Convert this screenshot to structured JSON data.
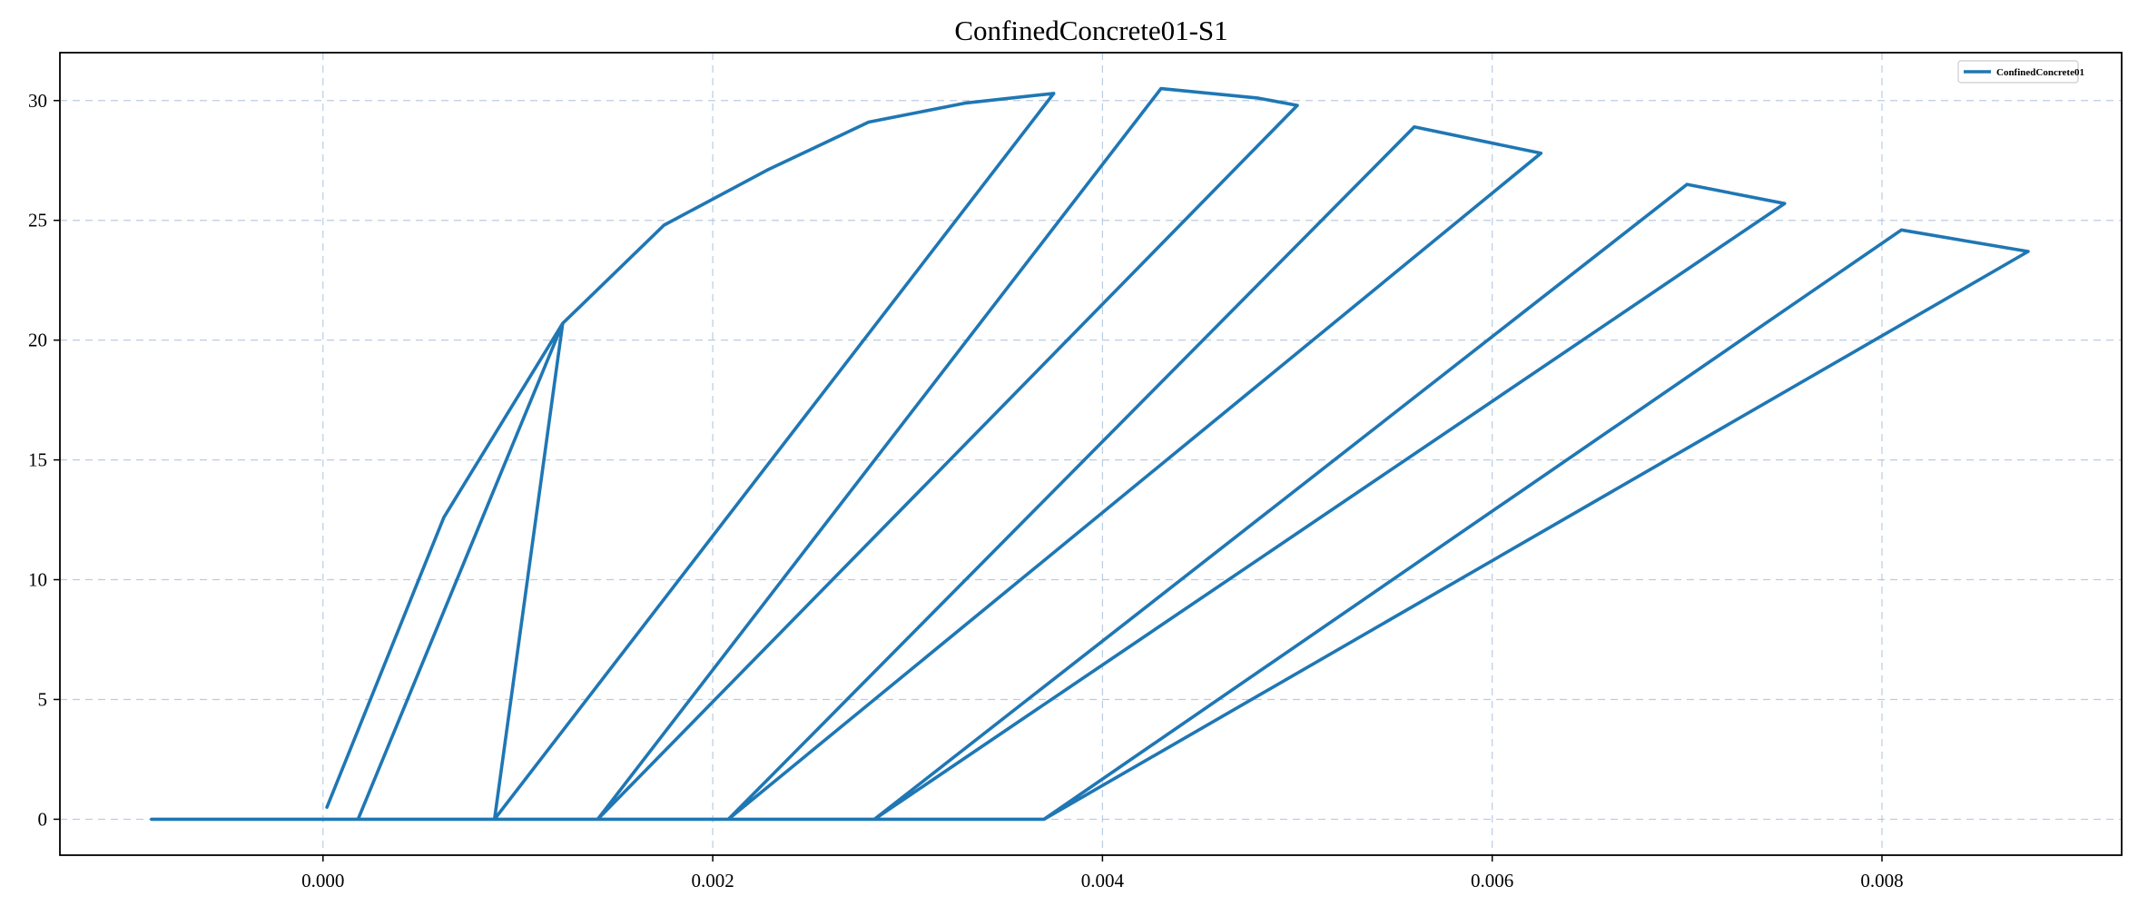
{
  "chart_data": {
    "type": "line",
    "title": "ConfinedConcrete01-S1",
    "xlabel": "",
    "ylabel": "",
    "xlim": [
      -0.00135,
      0.00923
    ],
    "ylim": [
      -1.5,
      32
    ],
    "xticks": [
      0.0,
      0.002,
      0.004,
      0.006,
      0.008
    ],
    "xtick_labels": [
      "0.000",
      "0.002",
      "0.004",
      "0.006",
      "0.008"
    ],
    "yticks": [
      0,
      5,
      10,
      15,
      20,
      25,
      30
    ],
    "ytick_labels": [
      "0",
      "5",
      "10",
      "15",
      "20",
      "25",
      "30"
    ],
    "grid": true,
    "legend_position": "top-right",
    "colors": {
      "series": "#1f77b4",
      "grid": "#b0c4de",
      "axis": "#000000"
    },
    "series": [
      {
        "name": "ConfinedConcrete01",
        "x": [
          2e-05,
          0.00062,
          0.00123,
          0.00018,
          -0.00088,
          0.00088,
          0.00123,
          0.00175,
          0.00228,
          0.0028,
          0.0033,
          0.00375,
          0.00088,
          0.00141,
          0.0043,
          0.0048,
          0.005,
          0.00141,
          0.00208,
          0.0056,
          0.00625,
          0.00208,
          0.00283,
          0.007,
          0.0075,
          0.00283,
          0.0037,
          0.0081,
          0.00875,
          0.0037,
          0.00283,
          0.00208,
          0.00141
        ],
        "y": [
          0.5,
          12.6,
          20.7,
          0.0,
          0.0,
          0.0,
          20.7,
          24.8,
          27.1,
          29.1,
          29.9,
          30.3,
          0.0,
          0.0,
          30.5,
          30.1,
          29.8,
          0.0,
          0.0,
          28.9,
          27.8,
          0.0,
          0.0,
          26.5,
          25.7,
          0.0,
          0.0,
          24.6,
          23.7,
          0.0,
          0.0,
          0.0,
          0.0
        ]
      }
    ]
  }
}
